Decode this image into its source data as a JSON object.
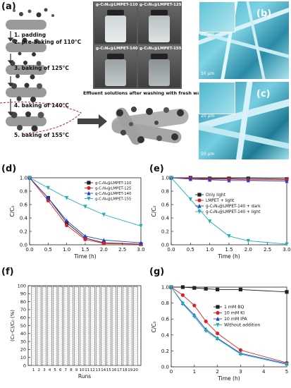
{
  "panels": {
    "a": "(a)",
    "b": "(b)",
    "c": "(c)",
    "d": "(d)",
    "e": "(e)",
    "f": "(f)",
    "g": "(g)"
  },
  "process_steps": [
    "1. padding",
    "2. pre-baking of 110°C",
    "3. baking of 125°C",
    "4. baking of 140°C",
    "5. baking of 155°C"
  ],
  "vials": [
    {
      "label": "g-C₃N₄@LMPET-110"
    },
    {
      "label": "g-C₃N₄@LMPET-125"
    },
    {
      "label": "g-C₃N₄@LMPET-140"
    },
    {
      "label": "g-C₃N₄@LMPET-155"
    }
  ],
  "effluent_caption": "Effluent solutions after washing with fresh water",
  "sem_scales": {
    "b_top": "20 μm",
    "b_bottom": "50 μm",
    "c_top": "20 μm",
    "c_bottom": "50 μm"
  },
  "chart_data": [
    {
      "panel": "d",
      "type": "line",
      "xlabel": "Time (h)",
      "ylabel": "C/C₀",
      "xlim": [
        0,
        3.0
      ],
      "ylim": [
        0,
        1.0
      ],
      "xticks": [
        "0.0",
        "0.5",
        "1.0",
        "1.5",
        "2.0",
        "2.5",
        "3.0"
      ],
      "yticks": [
        "0.0",
        "0.2",
        "0.4",
        "0.6",
        "0.8",
        "1.0"
      ],
      "legend_position": "top-right",
      "series": [
        {
          "name": "g-C₃N₄@LMPET-110",
          "color": "#222222",
          "marker": "square",
          "x": [
            0,
            0.5,
            1.0,
            1.5,
            2.0,
            3.0
          ],
          "y": [
            1.0,
            0.7,
            0.33,
            0.1,
            0.03,
            0.01
          ]
        },
        {
          "name": "g-C₃N₄@LMPET-125",
          "color": "#e02020",
          "marker": "circle",
          "x": [
            0,
            0.5,
            1.0,
            1.5,
            2.0,
            3.0
          ],
          "y": [
            1.0,
            0.66,
            0.29,
            0.08,
            0.02,
            0.01
          ]
        },
        {
          "name": "g-C₃N₄@LMPET-140",
          "color": "#2040d0",
          "marker": "triangle",
          "x": [
            0,
            0.5,
            1.0,
            1.5,
            2.0,
            3.0
          ],
          "y": [
            1.0,
            0.7,
            0.36,
            0.13,
            0.07,
            0.03
          ]
        },
        {
          "name": "g-C₃N₄@LMPET-155",
          "color": "#20b0b0",
          "marker": "down-triangle",
          "x": [
            0,
            0.5,
            1.0,
            1.5,
            2.0,
            3.0
          ],
          "y": [
            1.0,
            0.85,
            0.7,
            0.57,
            0.45,
            0.28
          ]
        }
      ]
    },
    {
      "panel": "e",
      "type": "line",
      "xlabel": "Time (h)",
      "ylabel": "C/C₀",
      "xlim": [
        0,
        3.0
      ],
      "ylim": [
        0,
        1.0
      ],
      "xticks": [
        "0.0",
        "0.5",
        "1.0",
        "1.5",
        "2.0",
        "2.5",
        "3.0"
      ],
      "yticks": [
        "0.0",
        "0.2",
        "0.4",
        "0.6",
        "0.8",
        "1.0"
      ],
      "legend_position": "middle-right",
      "series": [
        {
          "name": "Only light",
          "color": "#222222",
          "marker": "square",
          "x": [
            0,
            0.5,
            1.0,
            1.5,
            2.0,
            3.0
          ],
          "y": [
            1.0,
            1.0,
            0.99,
            0.99,
            0.99,
            0.98
          ]
        },
        {
          "name": "LMPET + light",
          "color": "#e02020",
          "marker": "circle",
          "x": [
            0,
            0.5,
            1.0,
            1.5,
            2.0,
            3.0
          ],
          "y": [
            1.0,
            0.99,
            0.98,
            0.98,
            0.97,
            0.97
          ]
        },
        {
          "name": "g-C₃N₄@LMPET-140 + dark",
          "color": "#2040d0",
          "marker": "triangle",
          "x": [
            0,
            0.5,
            1.0,
            1.5,
            2.0,
            3.0
          ],
          "y": [
            1.0,
            0.98,
            0.97,
            0.96,
            0.96,
            0.95
          ]
        },
        {
          "name": "g-C₃N₄@LMPET-140 + light",
          "color": "#20b0b0",
          "marker": "down-triangle",
          "x": [
            0,
            0.5,
            1.0,
            1.5,
            2.0,
            3.0
          ],
          "y": [
            1.0,
            0.68,
            0.35,
            0.13,
            0.06,
            0.01
          ]
        }
      ]
    },
    {
      "panel": "f",
      "type": "bar",
      "xlabel": "Runs",
      "ylabel": "(C₀-C)/C₀ (%)",
      "ylim": [
        0,
        100
      ],
      "yticks": [
        "0",
        "10",
        "20",
        "30",
        "40",
        "50",
        "60",
        "70",
        "80",
        "90",
        "100"
      ],
      "categories": [
        "1",
        "2",
        "3",
        "4",
        "5",
        "6",
        "7",
        "8",
        "9",
        "10",
        "11",
        "12",
        "13",
        "14",
        "15",
        "16",
        "17",
        "18",
        "19",
        "20"
      ],
      "values": [
        99,
        99,
        99,
        99,
        99,
        99,
        99,
        99,
        99,
        99,
        99,
        99,
        99,
        99,
        99,
        99,
        99,
        99,
        99,
        99
      ]
    },
    {
      "panel": "g",
      "type": "line",
      "xlabel": "Time (h)",
      "ylabel": "C/C₀",
      "xlim": [
        0,
        5
      ],
      "ylim": [
        0,
        1.0
      ],
      "xticks": [
        "0",
        "1",
        "2",
        "3",
        "4",
        "5"
      ],
      "yticks": [
        "0.0",
        "0.2",
        "0.4",
        "0.6",
        "0.8",
        "1.0"
      ],
      "legend_position": "middle-right",
      "series": [
        {
          "name": "1 mM BQ",
          "color": "#222222",
          "marker": "square",
          "x": [
            0,
            0.5,
            1,
            1.5,
            2,
            3,
            5
          ],
          "y": [
            1.0,
            1.0,
            0.99,
            0.98,
            0.97,
            0.97,
            0.94
          ]
        },
        {
          "name": "10 mM KI",
          "color": "#e02020",
          "marker": "circle",
          "x": [
            0,
            0.5,
            1,
            1.5,
            2,
            3,
            5
          ],
          "y": [
            1.0,
            0.9,
            0.77,
            0.57,
            0.42,
            0.21,
            0.05
          ]
        },
        {
          "name": "10 mM IPA",
          "color": "#2040d0",
          "marker": "triangle",
          "x": [
            0,
            0.5,
            1,
            1.5,
            2,
            3,
            5
          ],
          "y": [
            1.0,
            0.8,
            0.65,
            0.47,
            0.36,
            0.17,
            0.04
          ]
        },
        {
          "name": "Without addition",
          "color": "#20b0b0",
          "marker": "down-triangle",
          "x": [
            0,
            0.5,
            1,
            1.5,
            2,
            3,
            5
          ],
          "y": [
            1.0,
            0.79,
            0.63,
            0.45,
            0.35,
            0.16,
            0.03
          ]
        }
      ]
    }
  ]
}
